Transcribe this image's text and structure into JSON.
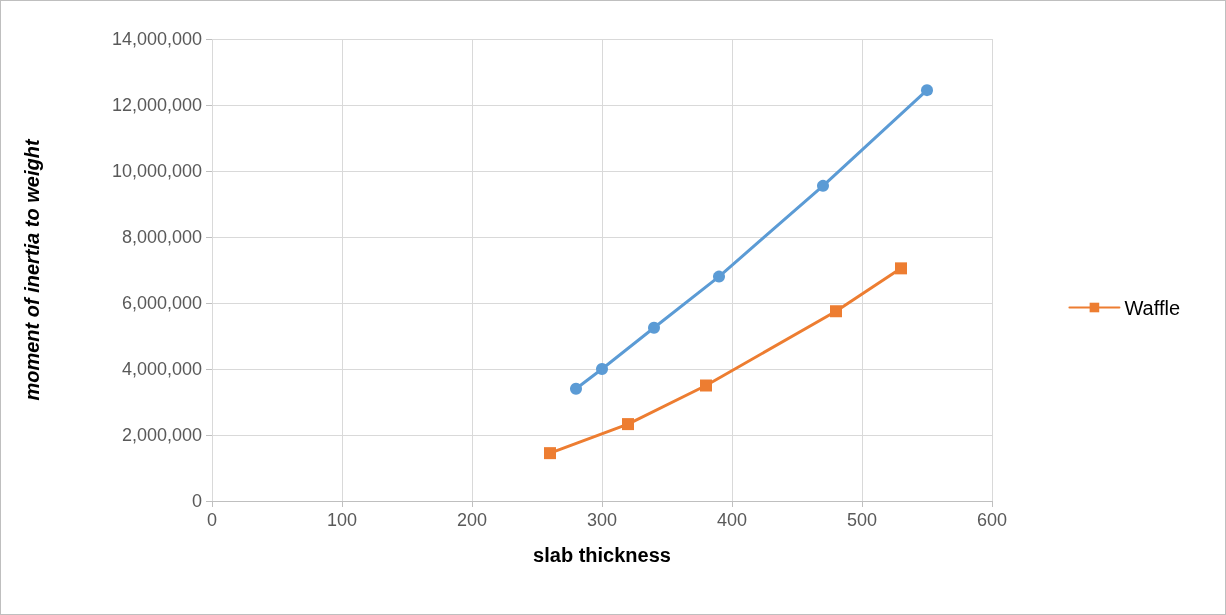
{
  "chart_data": {
    "type": "line",
    "xlabel": "slab thickness",
    "ylabel": "moment of inertia to weight",
    "series": [
      {
        "color": "#5b9bd5",
        "marker": "circle",
        "x": [
          280,
          300,
          340,
          390,
          470,
          550
        ],
        "values": [
          3400000,
          4000000,
          5250000,
          6800000,
          9550000,
          12450000
        ]
      },
      {
        "name": "Waffle",
        "color": "#ed7d31",
        "marker": "square",
        "x": [
          260,
          320,
          380,
          480,
          530
        ],
        "values": [
          1450000,
          2330000,
          3500000,
          5750000,
          7050000
        ]
      }
    ],
    "xlim": [
      0,
      600
    ],
    "xticks": [
      0,
      100,
      200,
      300,
      400,
      500,
      600
    ],
    "ylim": [
      0,
      14000000
    ],
    "yticks": [
      0,
      {
        "value": 2000000,
        "label": "2,000,000"
      },
      {
        "value": 4000000,
        "label": "4,000,000"
      },
      {
        "value": 6000000,
        "label": "6,000,000"
      },
      {
        "value": 8000000,
        "label": "8,000,000"
      },
      {
        "value": 10000000,
        "label": "10,000,000"
      },
      {
        "value": 12000000,
        "label": "12,000,000"
      },
      {
        "value": 14000000,
        "label": "14,000,000"
      }
    ],
    "grid": true,
    "legend": "right",
    "line_style": "solid"
  }
}
